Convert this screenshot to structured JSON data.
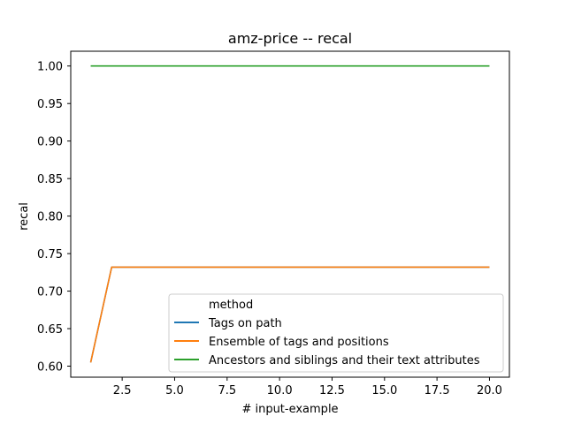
{
  "chart_data": {
    "type": "line",
    "title": "amz-price -- recal",
    "xlabel": "# input-example",
    "ylabel": "recal",
    "xlim": [
      0.05,
      20.95
    ],
    "ylim": [
      0.5853,
      1.0197
    ],
    "x_ticks": [
      2.5,
      5.0,
      7.5,
      10.0,
      12.5,
      15.0,
      17.5,
      20.0
    ],
    "x_tick_labels": [
      "2.5",
      "5.0",
      "7.5",
      "10.0",
      "12.5",
      "15.0",
      "17.5",
      "20.0"
    ],
    "y_ticks": [
      0.6,
      0.65,
      0.7,
      0.75,
      0.8,
      0.85,
      0.9,
      0.95,
      1.0
    ],
    "y_tick_labels": [
      "0.60",
      "0.65",
      "0.70",
      "0.75",
      "0.80",
      "0.85",
      "0.90",
      "0.95",
      "1.00"
    ],
    "grid": false,
    "legend": {
      "title": "method",
      "placement": "lower-right",
      "entries": [
        "Tags on path",
        "Ensemble of tags and positions",
        "Ancestors and siblings and their text attributes"
      ]
    },
    "series": [
      {
        "name": "Tags on path",
        "color": "#1f77b4",
        "x": [
          1,
          2,
          3,
          4,
          5,
          6,
          7,
          8,
          9,
          10,
          11,
          12,
          13,
          14,
          15,
          16,
          17,
          18,
          19,
          20
        ],
        "values": [
          0.605,
          0.732,
          0.732,
          0.732,
          0.732,
          0.732,
          0.732,
          0.732,
          0.732,
          0.732,
          0.732,
          0.732,
          0.732,
          0.732,
          0.732,
          0.732,
          0.732,
          0.732,
          0.732,
          0.732
        ]
      },
      {
        "name": "Ensemble of tags and positions",
        "color": "#ff7f0e",
        "x": [
          1,
          2,
          3,
          4,
          5,
          6,
          7,
          8,
          9,
          10,
          11,
          12,
          13,
          14,
          15,
          16,
          17,
          18,
          19,
          20
        ],
        "values": [
          0.605,
          0.732,
          0.732,
          0.732,
          0.732,
          0.732,
          0.732,
          0.732,
          0.732,
          0.732,
          0.732,
          0.732,
          0.732,
          0.732,
          0.732,
          0.732,
          0.732,
          0.732,
          0.732,
          0.732
        ]
      },
      {
        "name": "Ancestors and siblings and their text attributes",
        "color": "#2ca02c",
        "x": [
          1,
          2,
          3,
          4,
          5,
          6,
          7,
          8,
          9,
          10,
          11,
          12,
          13,
          14,
          15,
          16,
          17,
          18,
          19,
          20
        ],
        "values": [
          1.0,
          1.0,
          1.0,
          1.0,
          1.0,
          1.0,
          1.0,
          1.0,
          1.0,
          1.0,
          1.0,
          1.0,
          1.0,
          1.0,
          1.0,
          1.0,
          1.0,
          1.0,
          1.0,
          1.0
        ]
      }
    ]
  }
}
